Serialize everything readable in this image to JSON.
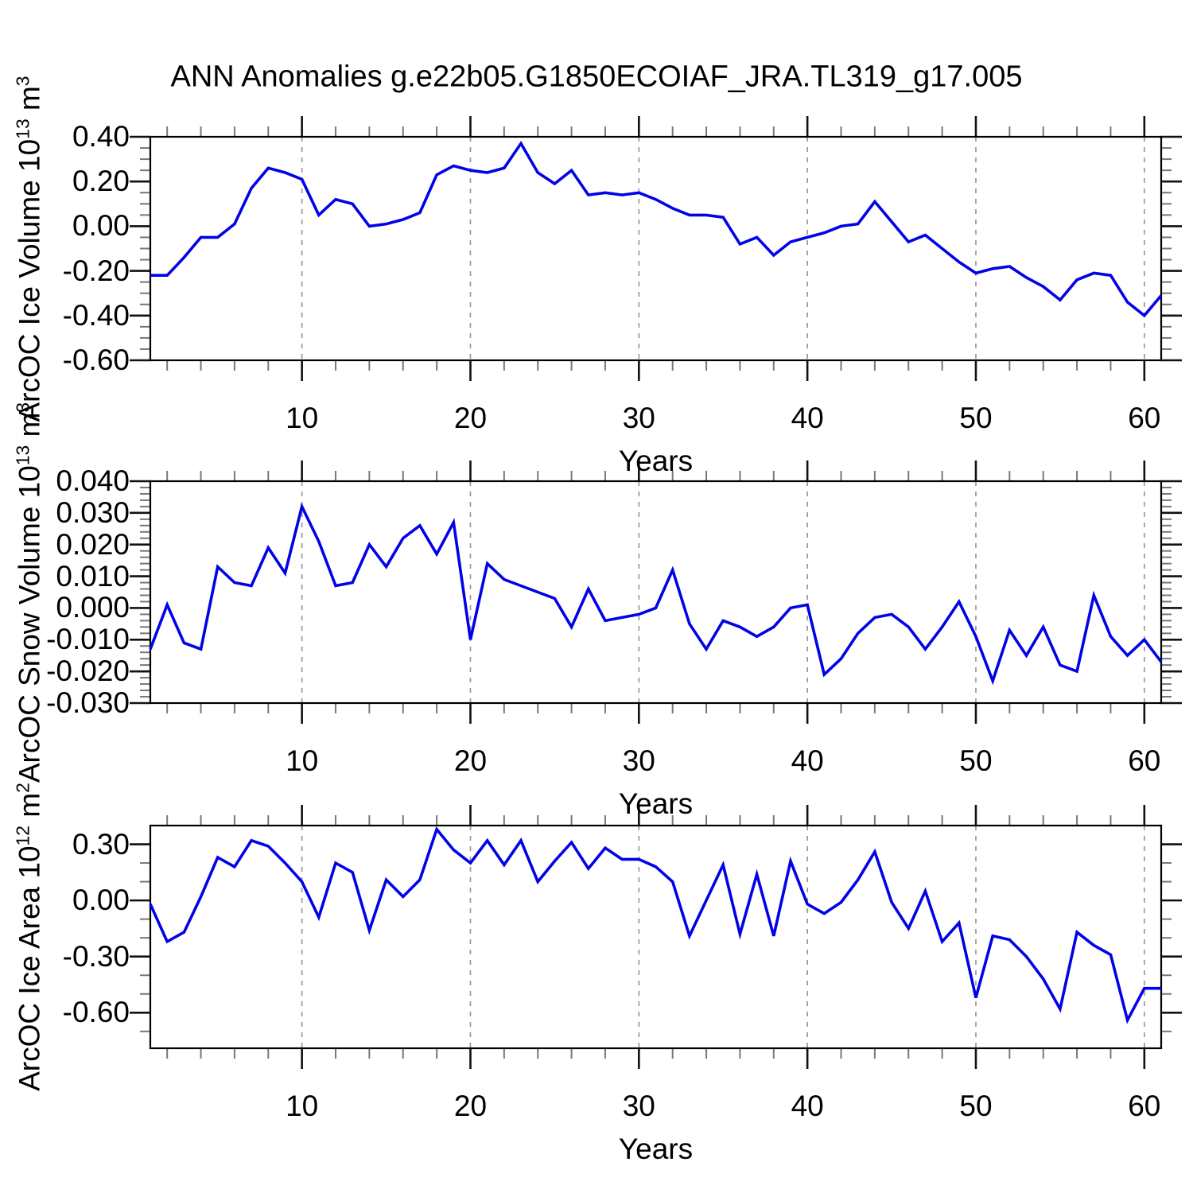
{
  "title": "ANN Anomalies g.e22b05.G1850ECOIAF_JRA.TL319_g17.005",
  "colors": {
    "line": "#0202e6",
    "frame": "#000000",
    "grid": "#999999",
    "major_tick": "#111111",
    "minor_tick": "#777777"
  },
  "chart_data": [
    {
      "type": "line",
      "title": "",
      "ylabel_prefix": "ArcOC Ice Volume 10",
      "ylabel_exp": "13",
      "ylabel_unit": " m",
      "ylabel_unit_exp": "3",
      "xlabel": "Years",
      "x_range": [
        1,
        61
      ],
      "x_major": 10,
      "x_minor": 2,
      "xtick_labels": [
        "10",
        "20",
        "30",
        "40",
        "50",
        "60"
      ],
      "y_range": [
        -0.6,
        0.4
      ],
      "y_major_vals": [
        0.4,
        0.2,
        0.0,
        -0.2,
        -0.4,
        -0.6
      ],
      "ytick_labels": [
        "0.40",
        "0.20",
        "0.00",
        "-0.20",
        "-0.40",
        "-0.60"
      ],
      "y_minor_step": 0.05,
      "grid": "vertical-dashed",
      "legend": "none",
      "values": [
        -0.22,
        -0.22,
        -0.14,
        -0.05,
        -0.05,
        0.01,
        0.17,
        0.26,
        0.24,
        0.21,
        0.05,
        0.12,
        0.1,
        0.0,
        0.01,
        0.03,
        0.06,
        0.23,
        0.27,
        0.25,
        0.24,
        0.26,
        0.37,
        0.24,
        0.19,
        0.25,
        0.14,
        0.15,
        0.14,
        0.15,
        0.12,
        0.08,
        0.05,
        0.05,
        0.04,
        -0.08,
        -0.05,
        -0.13,
        -0.07,
        -0.05,
        -0.03,
        0.0,
        0.01,
        0.11,
        0.02,
        -0.07,
        -0.04,
        -0.1,
        -0.16,
        -0.21,
        -0.19,
        -0.18,
        -0.23,
        -0.27,
        -0.33,
        -0.24,
        -0.21,
        -0.22,
        -0.34,
        -0.4,
        -0.31
      ]
    },
    {
      "type": "line",
      "title": "",
      "ylabel_prefix": "ArcOC Snow Volume 10",
      "ylabel_exp": "13",
      "ylabel_unit": " m",
      "ylabel_unit_exp": "3",
      "xlabel": "Years",
      "x_range": [
        1,
        61
      ],
      "x_major": 10,
      "x_minor": 2,
      "xtick_labels": [
        "10",
        "20",
        "30",
        "40",
        "50",
        "60"
      ],
      "y_range": [
        -0.03,
        0.04
      ],
      "y_major_vals": [
        0.04,
        0.03,
        0.02,
        0.01,
        0.0,
        -0.01,
        -0.02,
        -0.03
      ],
      "ytick_labels": [
        "0.040",
        "0.030",
        "0.020",
        "0.010",
        "0.000",
        "-0.010",
        "-0.020",
        "-0.030"
      ],
      "y_minor_step": 0.002,
      "grid": "vertical-dashed",
      "legend": "none",
      "values": [
        -0.013,
        0.001,
        -0.011,
        -0.013,
        0.013,
        0.008,
        0.007,
        0.019,
        0.011,
        0.032,
        0.021,
        0.007,
        0.008,
        0.02,
        0.013,
        0.022,
        0.026,
        0.017,
        0.027,
        -0.01,
        0.014,
        0.009,
        0.007,
        0.005,
        0.003,
        -0.006,
        0.006,
        -0.004,
        -0.003,
        -0.002,
        0.0,
        0.012,
        -0.005,
        -0.013,
        -0.004,
        -0.006,
        -0.009,
        -0.006,
        0.0,
        0.001,
        -0.021,
        -0.016,
        -0.008,
        -0.003,
        -0.002,
        -0.006,
        -0.013,
        -0.006,
        0.002,
        -0.009,
        -0.023,
        -0.007,
        -0.015,
        -0.006,
        -0.018,
        -0.02,
        0.004,
        -0.009,
        -0.015,
        -0.01,
        -0.017
      ]
    },
    {
      "type": "line",
      "title": "",
      "ylabel_prefix": "ArcOC Ice Area 10",
      "ylabel_exp": "12",
      "ylabel_unit": " m",
      "ylabel_unit_exp": "2",
      "xlabel": "Years",
      "x_range": [
        1,
        61
      ],
      "x_major": 10,
      "x_minor": 2,
      "xtick_labels": [
        "10",
        "20",
        "30",
        "40",
        "50",
        "60"
      ],
      "y_range": [
        -0.79,
        0.4
      ],
      "y_major_vals": [
        0.3,
        0.0,
        -0.3,
        -0.6
      ],
      "ytick_labels": [
        "0.30",
        "0.00",
        "-0.30",
        "-0.60"
      ],
      "y_minor_step": 0.1,
      "grid": "vertical-dashed",
      "legend": "none",
      "values": [
        -0.02,
        -0.22,
        -0.17,
        0.02,
        0.23,
        0.18,
        0.32,
        0.29,
        0.2,
        0.1,
        -0.09,
        0.2,
        0.15,
        -0.16,
        0.11,
        0.02,
        0.11,
        0.38,
        0.27,
        0.2,
        0.32,
        0.19,
        0.32,
        0.1,
        0.21,
        0.31,
        0.17,
        0.28,
        0.22,
        0.22,
        0.18,
        0.1,
        -0.19,
        0.0,
        0.19,
        -0.18,
        0.14,
        -0.19,
        0.21,
        -0.02,
        -0.07,
        -0.01,
        0.11,
        0.26,
        -0.01,
        -0.15,
        0.05,
        -0.22,
        -0.12,
        -0.52,
        -0.19,
        -0.21,
        -0.3,
        -0.42,
        -0.58,
        -0.17,
        -0.24,
        -0.29,
        -0.64,
        -0.47,
        -0.47
      ]
    }
  ]
}
